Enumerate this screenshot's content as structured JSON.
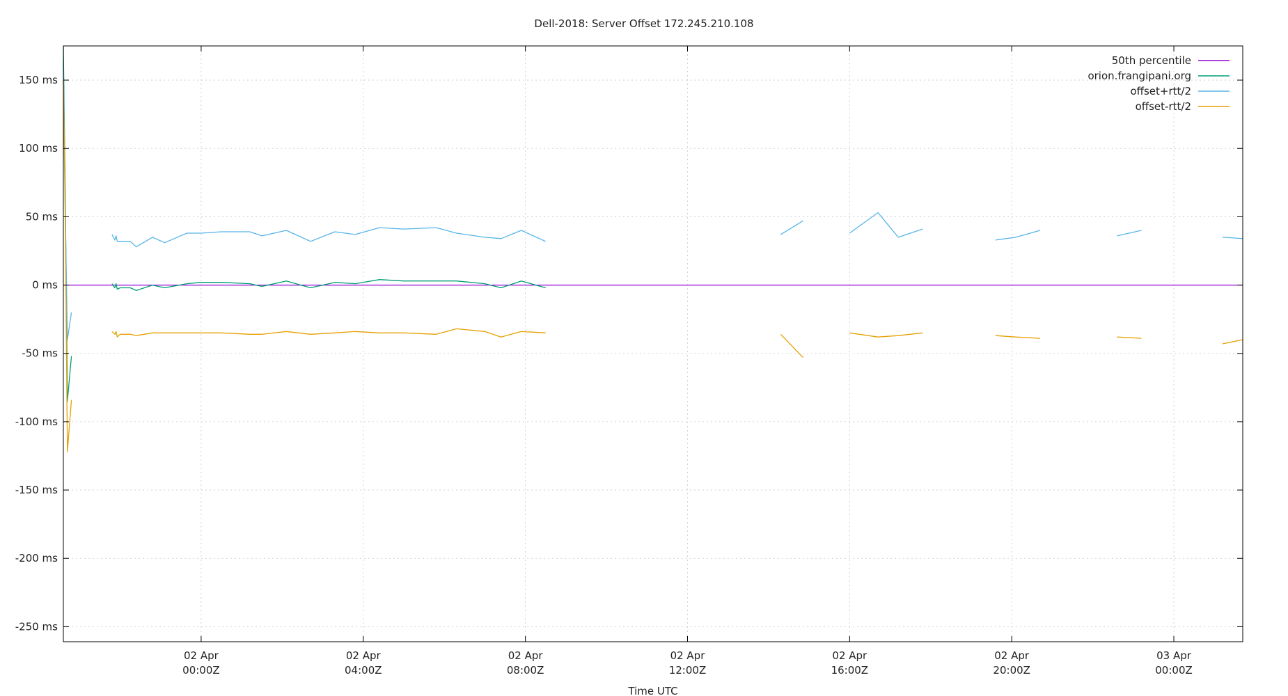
{
  "chart_data": {
    "type": "line",
    "title": "Dell-2018: Server Offset 172.245.210.108",
    "xlabel": "Time UTC",
    "ylabel": "",
    "ylim": [
      -261,
      175
    ],
    "xlim_hours": [
      -3.4,
      25.7
    ],
    "y_ticks": [
      {
        "v": 150,
        "label": "150 ms"
      },
      {
        "v": 100,
        "label": "100 ms"
      },
      {
        "v": 50,
        "label": "50 ms"
      },
      {
        "v": 0,
        "label": "0 ms"
      },
      {
        "v": -50,
        "label": "-50 ms"
      },
      {
        "v": -100,
        "label": "-100 ms"
      },
      {
        "v": -150,
        "label": "-150 ms"
      },
      {
        "v": -200,
        "label": "-200 ms"
      },
      {
        "v": -250,
        "label": "-250 ms"
      }
    ],
    "x_ticks": [
      {
        "h": 0,
        "line1": "02 Apr",
        "line2": "00:00Z"
      },
      {
        "h": 4,
        "line1": "02 Apr",
        "line2": "04:00Z"
      },
      {
        "h": 8,
        "line1": "02 Apr",
        "line2": "08:00Z"
      },
      {
        "h": 12,
        "line1": "02 Apr",
        "line2": "12:00Z"
      },
      {
        "h": 16,
        "line1": "02 Apr",
        "line2": "16:00Z"
      },
      {
        "h": 20,
        "line1": "02 Apr",
        "line2": "20:00Z"
      },
      {
        "h": 24,
        "line1": "03 Apr",
        "line2": "00:00Z"
      }
    ],
    "grid": true,
    "legend_position": "top-right",
    "series": [
      {
        "name": "50th percentile",
        "color": "#9400d3",
        "segments": [
          [
            [
              -3.4,
              0
            ],
            [
              25.7,
              0
            ]
          ]
        ]
      },
      {
        "name": "orion.frangipani.org",
        "color": "#009e73",
        "segments": [
          [
            [
              -3.4,
              175
            ],
            [
              -3.35,
              60
            ],
            [
              -3.3,
              -85
            ],
            [
              -3.2,
              -52
            ]
          ],
          [
            [
              -2.2,
              1
            ],
            [
              -2.13,
              -2
            ],
            [
              -2.1,
              1
            ],
            [
              -2.07,
              -3
            ],
            [
              -2.0,
              -2
            ],
            [
              -1.75,
              -2
            ],
            [
              -1.6,
              -4
            ],
            [
              -1.2,
              0
            ],
            [
              -0.9,
              -2
            ],
            [
              -0.35,
              1
            ],
            [
              0,
              2
            ],
            [
              0.5,
              2
            ],
            [
              1.2,
              1
            ],
            [
              1.5,
              -1
            ],
            [
              2.1,
              3
            ],
            [
              2.7,
              -2
            ],
            [
              3.3,
              2
            ],
            [
              3.8,
              1
            ],
            [
              4.4,
              4
            ],
            [
              5.0,
              3
            ],
            [
              5.8,
              3
            ],
            [
              6.3,
              3
            ],
            [
              7.0,
              1
            ],
            [
              7.4,
              -2
            ],
            [
              7.9,
              3
            ],
            [
              8.5,
              -2
            ]
          ]
        ]
      },
      {
        "name": "offset+rtt/2",
        "color": "#56b4e9",
        "segments": [
          [
            [
              -3.4,
              160
            ],
            [
              -3.35,
              50
            ],
            [
              -3.3,
              -40
            ],
            [
              -3.2,
              -20
            ]
          ],
          [
            [
              -2.2,
              37
            ],
            [
              -2.13,
              33
            ],
            [
              -2.1,
              36
            ],
            [
              -2.07,
              32
            ],
            [
              -2.0,
              32
            ],
            [
              -1.75,
              32
            ],
            [
              -1.6,
              28
            ],
            [
              -1.2,
              35
            ],
            [
              -0.9,
              31
            ],
            [
              -0.35,
              38
            ],
            [
              0,
              38
            ],
            [
              0.5,
              39
            ],
            [
              1.2,
              39
            ],
            [
              1.5,
              36
            ],
            [
              2.1,
              40
            ],
            [
              2.7,
              32
            ],
            [
              3.3,
              39
            ],
            [
              3.8,
              37
            ],
            [
              4.4,
              42
            ],
            [
              5.0,
              41
            ],
            [
              5.8,
              42
            ],
            [
              6.3,
              38
            ],
            [
              7.0,
              35
            ],
            [
              7.4,
              34
            ],
            [
              7.9,
              40
            ],
            [
              8.5,
              32
            ]
          ],
          [
            [
              14.3,
              37
            ],
            [
              14.85,
              47
            ]
          ],
          [
            [
              16.0,
              38
            ],
            [
              16.7,
              53
            ],
            [
              17.2,
              35
            ],
            [
              17.8,
              41
            ]
          ],
          [
            [
              19.6,
              33
            ],
            [
              20.1,
              35
            ],
            [
              20.7,
              40
            ]
          ],
          [
            [
              22.6,
              36
            ],
            [
              23.2,
              40
            ]
          ],
          [
            [
              25.2,
              35
            ],
            [
              25.7,
              34
            ]
          ]
        ]
      },
      {
        "name": "offset-rtt/2",
        "color": "#e69f00",
        "segments": [
          [
            [
              -3.4,
              150
            ],
            [
              -3.35,
              40
            ],
            [
              -3.3,
              -122
            ],
            [
              -3.2,
              -84
            ]
          ],
          [
            [
              -2.2,
              -34
            ],
            [
              -2.13,
              -36
            ],
            [
              -2.1,
              -34
            ],
            [
              -2.07,
              -38
            ],
            [
              -2.0,
              -36
            ],
            [
              -1.75,
              -36
            ],
            [
              -1.6,
              -37
            ],
            [
              -1.2,
              -35
            ],
            [
              -0.9,
              -35
            ],
            [
              -0.35,
              -35
            ],
            [
              0,
              -35
            ],
            [
              0.5,
              -35
            ],
            [
              1.2,
              -36
            ],
            [
              1.5,
              -36
            ],
            [
              2.1,
              -34
            ],
            [
              2.7,
              -36
            ],
            [
              3.3,
              -35
            ],
            [
              3.8,
              -34
            ],
            [
              4.4,
              -35
            ],
            [
              5.0,
              -35
            ],
            [
              5.8,
              -36
            ],
            [
              6.3,
              -32
            ],
            [
              7.0,
              -34
            ],
            [
              7.4,
              -38
            ],
            [
              7.9,
              -34
            ],
            [
              8.5,
              -35
            ]
          ],
          [
            [
              14.3,
              -36
            ],
            [
              14.85,
              -53
            ]
          ],
          [
            [
              16.0,
              -35
            ],
            [
              16.7,
              -38
            ],
            [
              17.2,
              -37
            ],
            [
              17.8,
              -35
            ]
          ],
          [
            [
              19.6,
              -37
            ],
            [
              20.1,
              -38
            ],
            [
              20.7,
              -39
            ]
          ],
          [
            [
              22.6,
              -38
            ],
            [
              23.2,
              -39
            ]
          ],
          [
            [
              25.2,
              -43
            ],
            [
              25.7,
              -40
            ]
          ]
        ]
      }
    ]
  }
}
